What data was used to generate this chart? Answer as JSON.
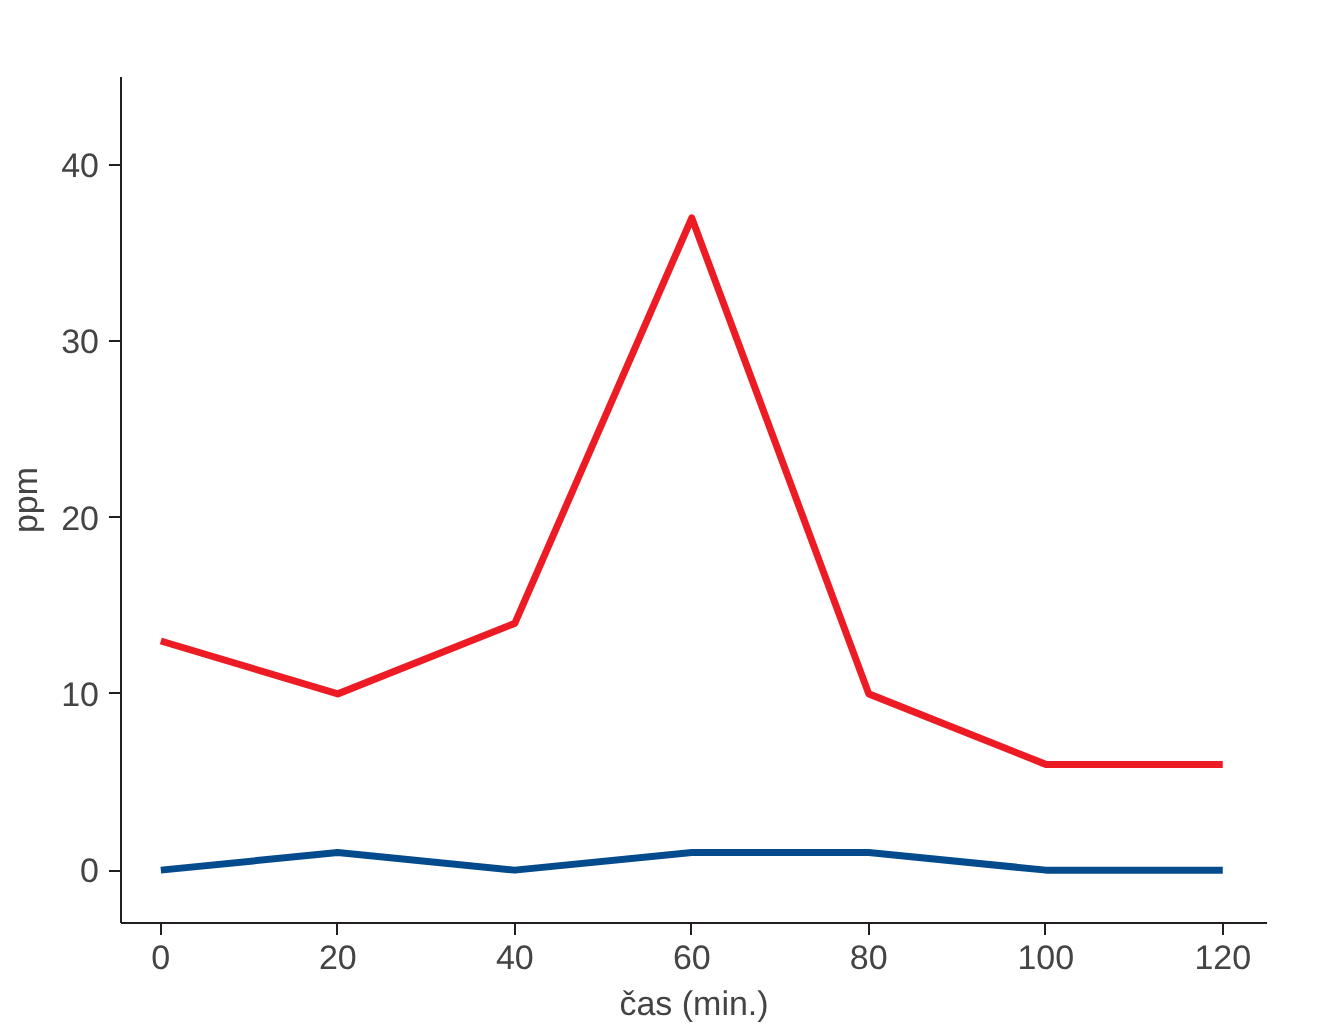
{
  "chart_data": {
    "type": "line",
    "xlabel": "čas (min.)",
    "ylabel": "ppm",
    "x": [
      0,
      20,
      40,
      60,
      80,
      100,
      120
    ],
    "series": [
      {
        "color": "#ed1c24",
        "values": [
          13,
          10,
          14,
          37,
          10,
          6,
          6
        ]
      },
      {
        "color": "#034b8c",
        "values": [
          0,
          1,
          0,
          1,
          1,
          0,
          0
        ]
      }
    ],
    "xlim": [
      -4.5,
      125
    ],
    "ylim": [
      -3,
      45
    ],
    "xticks": [
      0,
      20,
      40,
      60,
      80,
      100,
      120
    ],
    "yticks": [
      0,
      10,
      20,
      30,
      40
    ],
    "marker": "none",
    "line_style": "solid"
  }
}
